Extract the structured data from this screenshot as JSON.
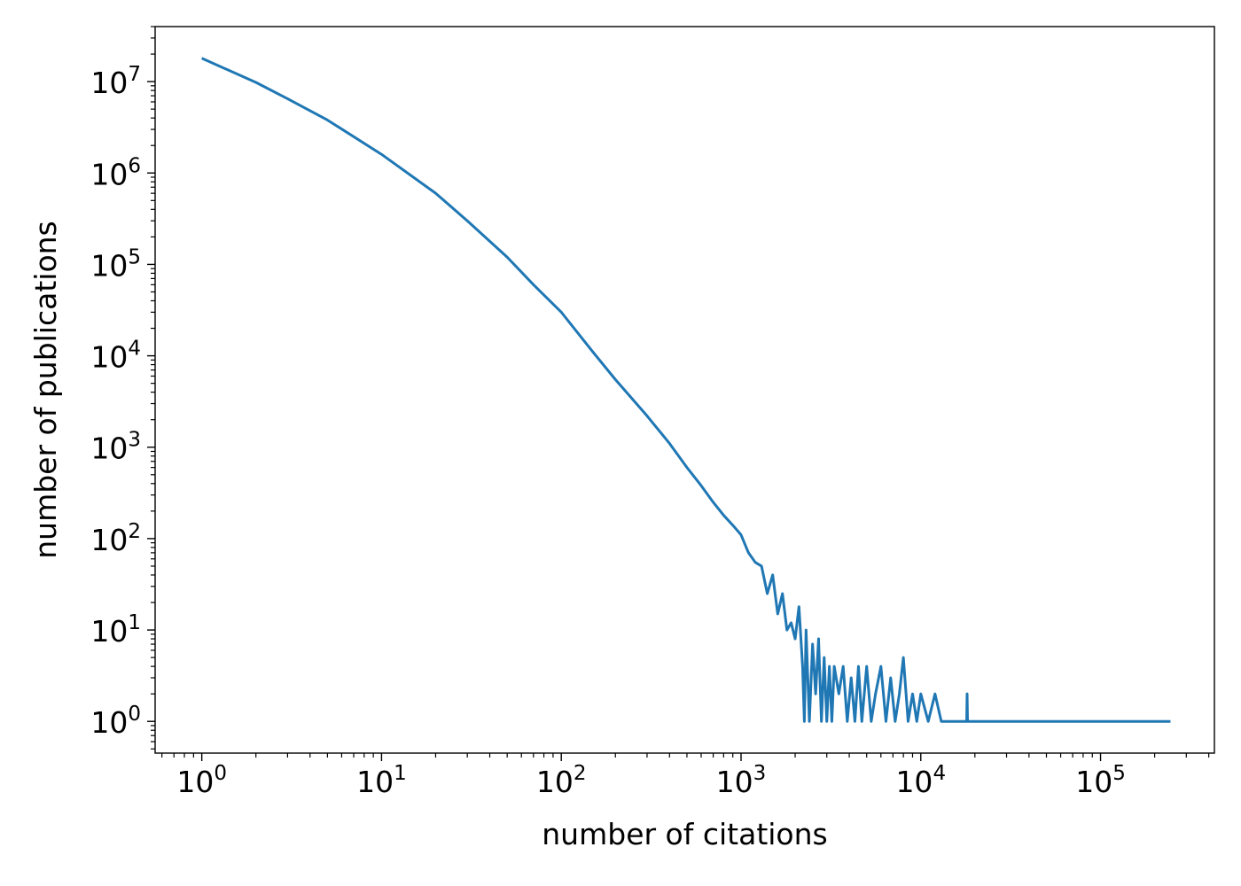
{
  "chart_data": {
    "type": "line",
    "title": "",
    "xlabel": "number of citations",
    "ylabel": "number of publications",
    "x_scale": "log",
    "y_scale": "log",
    "xlim": [
      0.55,
      430000
    ],
    "ylim": [
      0.45,
      40000000
    ],
    "grid": false,
    "legend": "none",
    "x_major_ticks": [
      {
        "value": 1,
        "base": "10",
        "exp": "0"
      },
      {
        "value": 10,
        "base": "10",
        "exp": "1"
      },
      {
        "value": 100,
        "base": "10",
        "exp": "2"
      },
      {
        "value": 1000,
        "base": "10",
        "exp": "3"
      },
      {
        "value": 10000,
        "base": "10",
        "exp": "4"
      },
      {
        "value": 100000,
        "base": "10",
        "exp": "5"
      }
    ],
    "y_major_ticks": [
      {
        "value": 1,
        "base": "10",
        "exp": "0"
      },
      {
        "value": 10,
        "base": "10",
        "exp": "1"
      },
      {
        "value": 100,
        "base": "10",
        "exp": "2"
      },
      {
        "value": 1000,
        "base": "10",
        "exp": "3"
      },
      {
        "value": 10000,
        "base": "10",
        "exp": "4"
      },
      {
        "value": 100000,
        "base": "10",
        "exp": "5"
      },
      {
        "value": 1000000,
        "base": "10",
        "exp": "6"
      },
      {
        "value": 10000000,
        "base": "10",
        "exp": "7"
      }
    ],
    "series": [
      {
        "color": "#1f77b4",
        "x": [
          1,
          2,
          3,
          5,
          10,
          20,
          30,
          50,
          70,
          100,
          150,
          200,
          300,
          400,
          500,
          600,
          700,
          800,
          900,
          1000,
          1100,
          1200,
          1300,
          1400,
          1500,
          1600,
          1700,
          1800,
          1900,
          2000,
          2100,
          2200,
          2250,
          2300,
          2400,
          2500,
          2600,
          2700,
          2800,
          2900,
          3000,
          3100,
          3200,
          3300,
          3500,
          3700,
          3900,
          4100,
          4300,
          4500,
          4700,
          5000,
          5300,
          5600,
          6000,
          6400,
          6800,
          7200,
          7600,
          8000,
          8500,
          9000,
          9500,
          10000,
          11000,
          12000,
          13000,
          14000,
          18000,
          18100,
          18200,
          245000
        ],
        "y": [
          18000000,
          9800000,
          6500000,
          3800000,
          1600000,
          600000,
          300000,
          120000,
          60000,
          30000,
          11000,
          5500,
          2200,
          1100,
          600,
          380,
          250,
          180,
          140,
          110,
          70,
          55,
          50,
          25,
          40,
          15,
          25,
          10,
          12,
          8,
          18,
          4,
          1,
          10,
          1,
          7,
          2,
          8,
          1,
          5,
          1,
          4,
          1,
          4,
          2,
          4,
          1,
          3,
          1,
          4,
          1,
          4,
          1,
          2,
          4,
          1,
          3,
          1,
          2,
          5,
          1,
          2,
          1,
          2,
          1,
          2,
          1,
          1,
          1,
          2,
          1,
          1
        ]
      }
    ]
  }
}
